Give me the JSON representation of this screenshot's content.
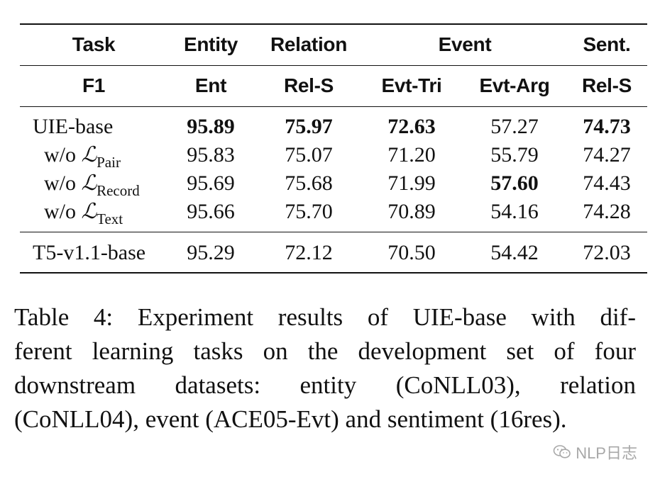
{
  "table": {
    "header1": {
      "task": "Task",
      "entity": "Entity",
      "relation": "Relation",
      "event": "Event",
      "sent": "Sent."
    },
    "header2": [
      "F1",
      "Ent",
      "Rel-S",
      "Evt-Tri",
      "Evt-Arg",
      "Rel-S"
    ],
    "rows": [
      {
        "name": "UIE-base",
        "values": [
          "95.89",
          "75.97",
          "72.63",
          "57.27",
          "74.73"
        ],
        "bold": [
          true,
          true,
          true,
          false,
          true
        ]
      },
      {
        "name_prefix": "w/o ",
        "name_symbol": "ℒ",
        "name_sub": "Pair",
        "values": [
          "95.83",
          "75.07",
          "71.20",
          "55.79",
          "74.27"
        ],
        "bold": [
          false,
          false,
          false,
          false,
          false
        ]
      },
      {
        "name_prefix": "w/o ",
        "name_symbol": "ℒ",
        "name_sub": "Record",
        "values": [
          "95.69",
          "75.68",
          "71.99",
          "57.60",
          "74.43"
        ],
        "bold": [
          false,
          false,
          false,
          true,
          false
        ]
      },
      {
        "name_prefix": "w/o ",
        "name_symbol": "ℒ",
        "name_sub": "Text",
        "values": [
          "95.66",
          "75.70",
          "70.89",
          "54.16",
          "74.28"
        ],
        "bold": [
          false,
          false,
          false,
          false,
          false
        ]
      },
      {
        "name": "T5-v1.1-base",
        "values": [
          "95.29",
          "72.12",
          "70.50",
          "54.42",
          "72.03"
        ],
        "bold": [
          false,
          false,
          false,
          false,
          false
        ]
      }
    ]
  },
  "caption": {
    "line1": "Table 4:  Experiment results of UIE-base with dif-",
    "line2": "ferent learning tasks on the development set of four",
    "line3": "downstream datasets:  entity (CoNLL03), relation",
    "line4": "(CoNLL04), event (ACE05-Evt) and sentiment (16res)."
  },
  "watermark": {
    "text": "NLP日志",
    "icon": "wechat-icon"
  }
}
